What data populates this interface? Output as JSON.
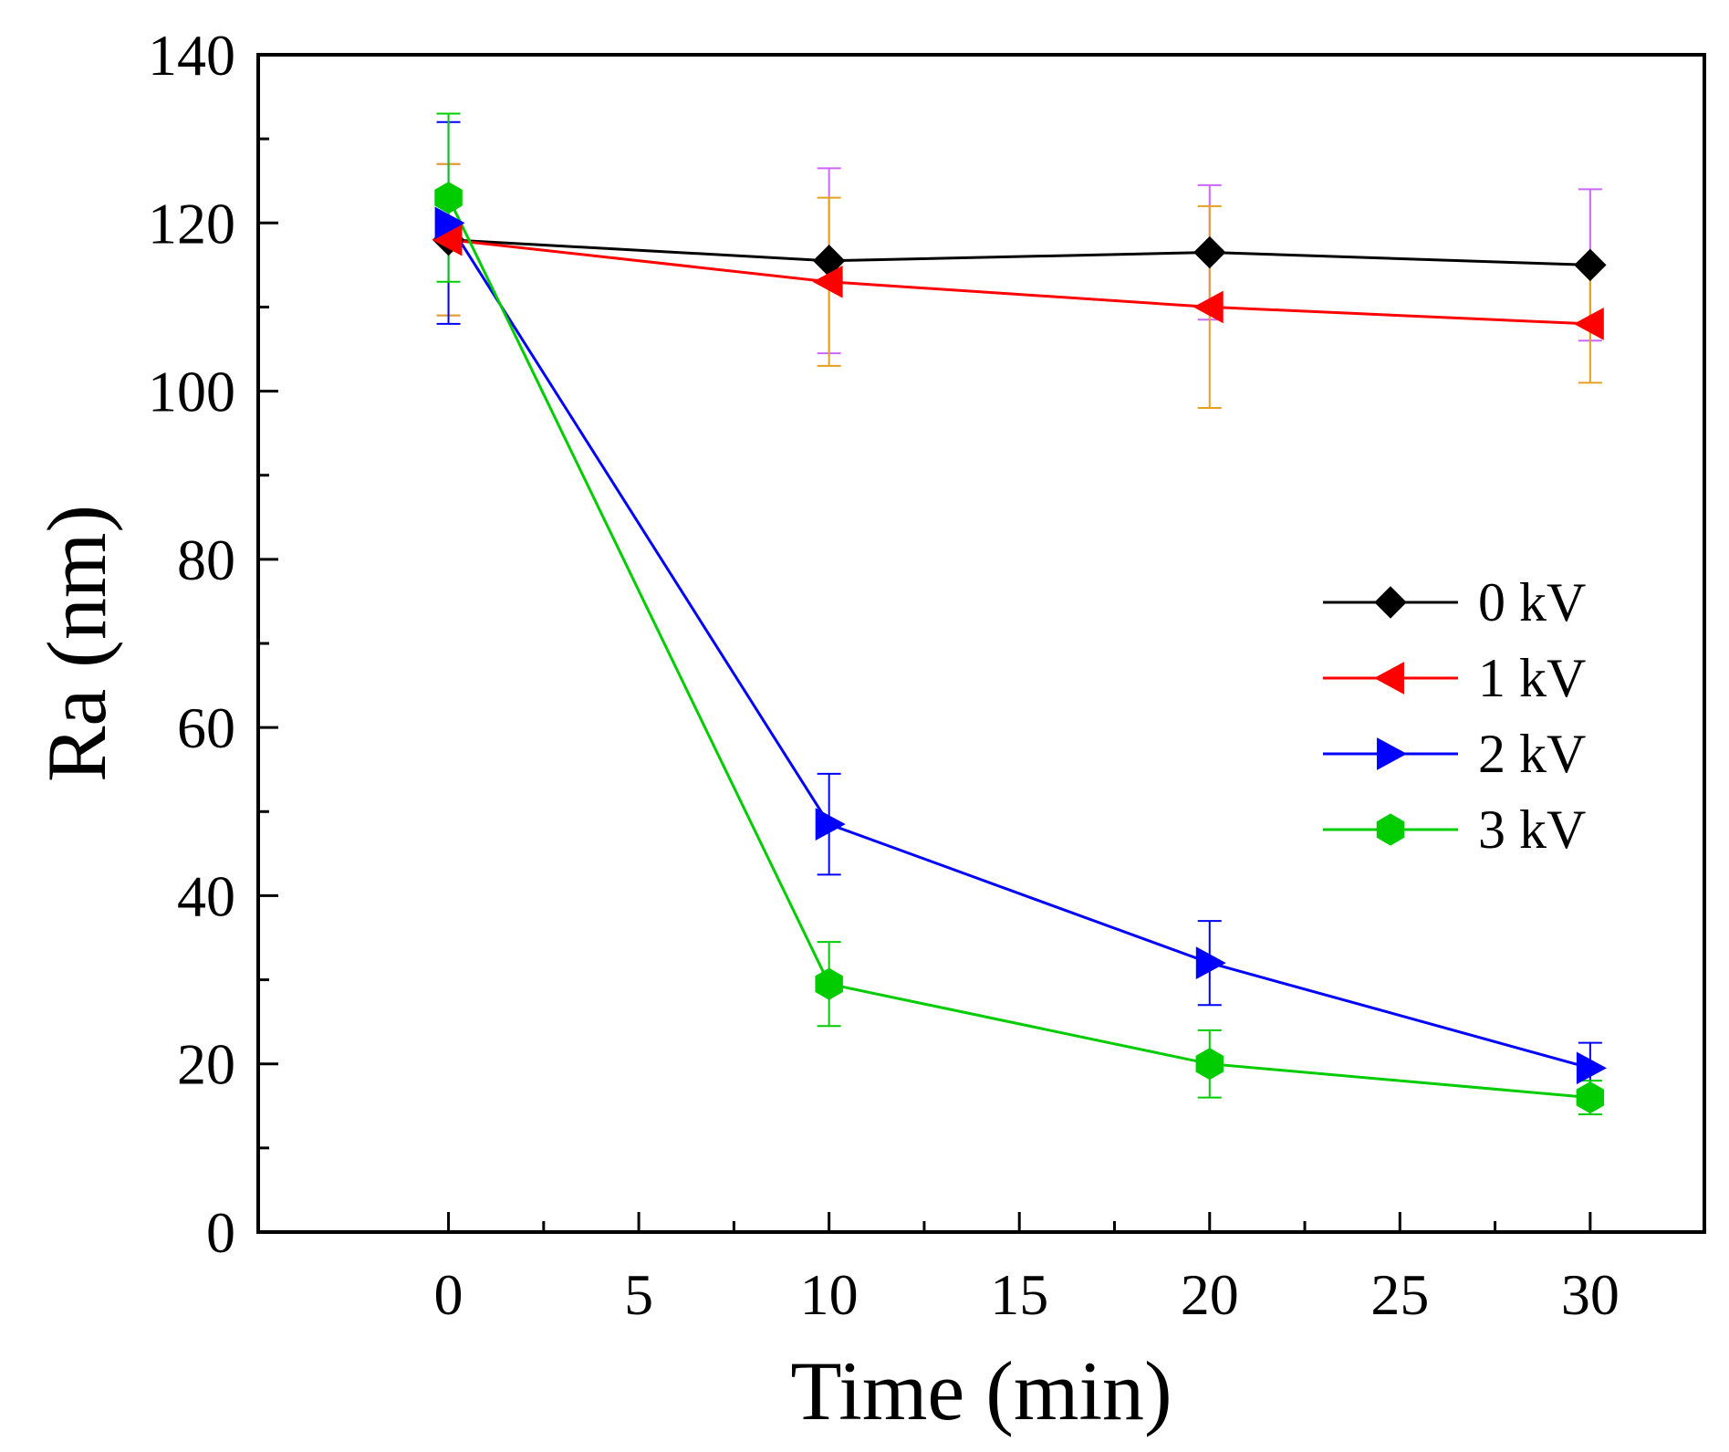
{
  "chart_data": {
    "type": "line",
    "title": "",
    "xlabel": "Time (min)",
    "ylabel": "Ra (nm)",
    "xlim": [
      -5,
      33
    ],
    "ylim": [
      0,
      140
    ],
    "xticks": [
      0,
      5,
      10,
      15,
      20,
      25,
      30
    ],
    "yticks": [
      0,
      20,
      40,
      60,
      80,
      100,
      120,
      140
    ],
    "grid": false,
    "legend_position": "right-middle",
    "series": [
      {
        "name": "0 kV",
        "color": "#000000",
        "marker": "diamond",
        "x": [
          0,
          10,
          20,
          30
        ],
        "y": [
          118,
          115.5,
          116.5,
          115
        ],
        "err": [
          9,
          11,
          8,
          9
        ],
        "err_color": "#cc66ff"
      },
      {
        "name": "1 kV",
        "color": "#ff0000",
        "marker": "triangle-left",
        "x": [
          0,
          10,
          20,
          30
        ],
        "y": [
          118,
          113,
          110,
          108
        ],
        "err": [
          9,
          10,
          12,
          7
        ],
        "err_color": "#e6a020"
      },
      {
        "name": "2 kV",
        "color": "#0000ff",
        "marker": "triangle-right",
        "x": [
          0,
          10,
          20,
          30
        ],
        "y": [
          120,
          48.5,
          32,
          19.5
        ],
        "err": [
          12,
          6,
          5,
          3
        ],
        "err_color": "#0000ff"
      },
      {
        "name": "3 kV",
        "color": "#00cc00",
        "marker": "hexagon",
        "x": [
          0,
          10,
          20,
          30
        ],
        "y": [
          123,
          29.5,
          20,
          16
        ],
        "err": [
          10,
          5,
          4,
          2
        ],
        "err_color": "#00cc00"
      }
    ]
  }
}
